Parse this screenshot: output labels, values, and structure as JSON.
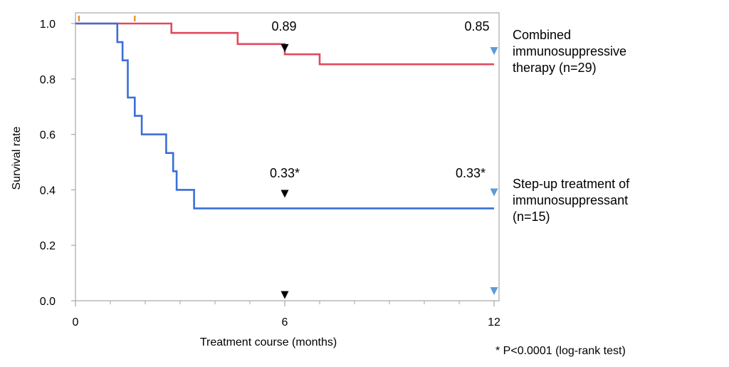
{
  "chart_data": {
    "type": "line",
    "subtype": "kaplan-meier-step",
    "xlabel": "Treatment course (months)",
    "ylabel": "Survival rate",
    "xlim": [
      0,
      12
    ],
    "ylim": [
      0,
      1.0
    ],
    "x_tick_labels": [
      "0",
      "6",
      "12"
    ],
    "x_tick_values": [
      0,
      6,
      12
    ],
    "x_minor_ticks": [
      1,
      2,
      3,
      4,
      5,
      7,
      8,
      9,
      10,
      11
    ],
    "y_tick_labels": [
      "0.0",
      "0.2",
      "0.4",
      "0.6",
      "0.8",
      "1.0"
    ],
    "y_tick_values": [
      0,
      0.2,
      0.4,
      0.6,
      0.8,
      1.0
    ],
    "grid": false,
    "series": [
      {
        "name": "Combined immunosuppressive therapy (n=29)",
        "legend_lines": [
          "Combined",
          "immunosuppressive",
          "therapy (n=29)"
        ],
        "color": "#e04a5f",
        "steps": [
          [
            0,
            1.0
          ],
          [
            2.75,
            0.966
          ],
          [
            4.65,
            0.926
          ],
          [
            6.0,
            0.889
          ],
          [
            7.0,
            0.853
          ],
          [
            12.0,
            0.853
          ]
        ],
        "censor_marks_x": [
          0.1,
          1.7
        ],
        "censor_color": "#e08a2a"
      },
      {
        "name": "Step-up treatment of immunosuppressant (n=15)",
        "legend_lines": [
          "Step-up treatment of",
          "immunosuppressant",
          "(n=15)"
        ],
        "color": "#3a6fd8",
        "steps": [
          [
            0,
            1.0
          ],
          [
            1.2,
            0.933
          ],
          [
            1.35,
            0.867
          ],
          [
            1.5,
            0.733
          ],
          [
            1.7,
            0.667
          ],
          [
            1.9,
            0.6
          ],
          [
            2.6,
            0.533
          ],
          [
            2.8,
            0.467
          ],
          [
            2.9,
            0.4
          ],
          [
            3.4,
            0.333
          ],
          [
            12.0,
            0.333
          ]
        ]
      }
    ],
    "annotations": [
      {
        "text": "0.89",
        "x": 6,
        "y": 0.89
      },
      {
        "text": "0.85",
        "x": 12,
        "y": 0.85
      },
      {
        "text": "0.33*",
        "x": 6,
        "y": 0.33
      },
      {
        "text": "0.33*",
        "x": 12,
        "y": 0.33
      }
    ],
    "markers": [
      {
        "x": 6,
        "y": 0.913,
        "color": "#000000"
      },
      {
        "x": 6,
        "y": 0.387,
        "color": "#000000"
      },
      {
        "x": 6,
        "y": 0.022,
        "color": "#000000"
      },
      {
        "x": 12,
        "y": 0.902,
        "color": "#5b9bd5"
      },
      {
        "x": 12,
        "y": 0.392,
        "color": "#5b9bd5"
      },
      {
        "x": 12,
        "y": 0.036,
        "color": "#5b9bd5"
      }
    ],
    "footnote": "* P<0.0001 (log-rank test)"
  }
}
